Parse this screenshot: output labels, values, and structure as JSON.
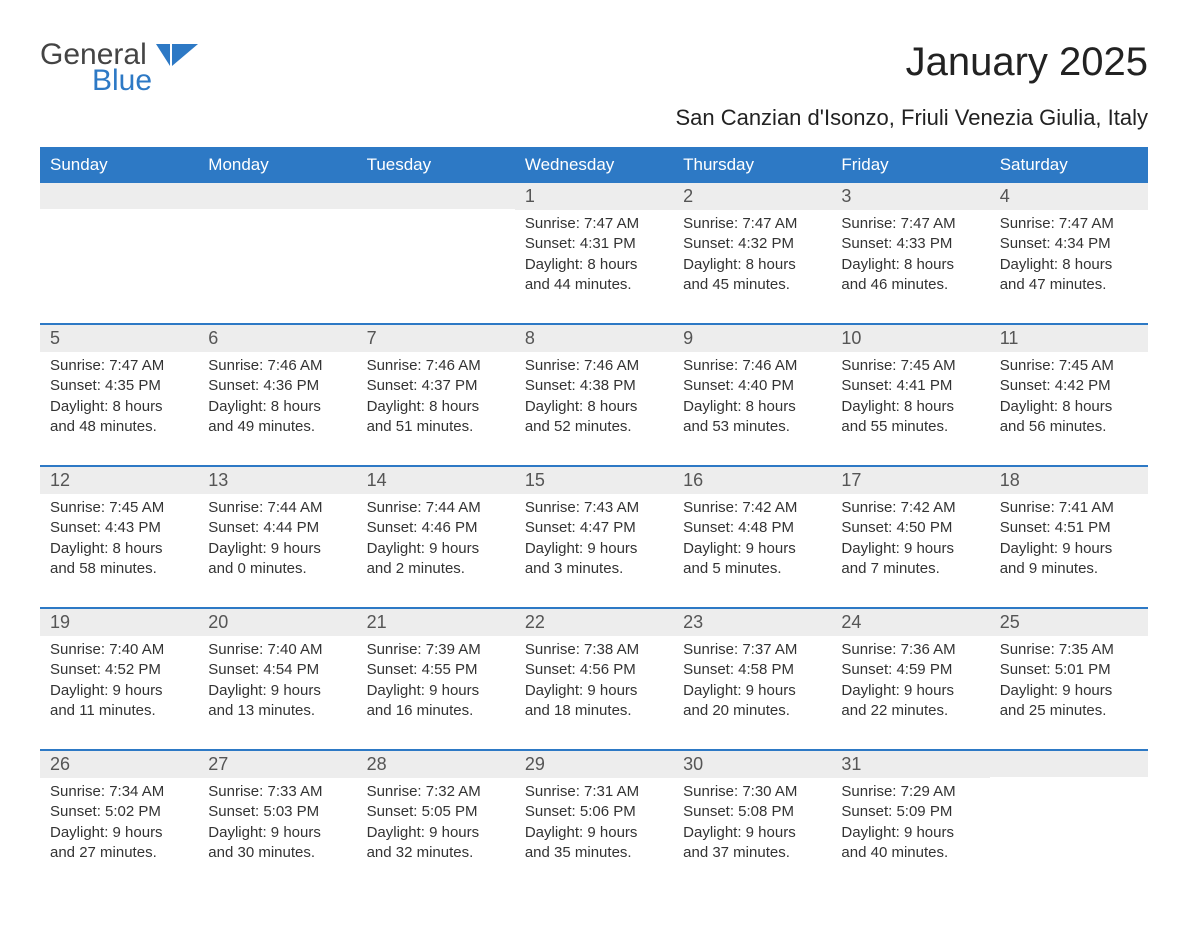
{
  "logo": {
    "text1": "General",
    "text2": "Blue",
    "accent_color": "#2d79c5"
  },
  "title": "January 2025",
  "subtitle": "San Canzian d'Isonzo, Friuli Venezia Giulia, Italy",
  "colors": {
    "header_bg": "#2d79c5",
    "header_text": "#ffffff",
    "daynum_bg": "#ededed",
    "daynum_text": "#555555",
    "body_text": "#333333",
    "rule": "#2d79c5",
    "page_bg": "#ffffff"
  },
  "day_headers": [
    "Sunday",
    "Monday",
    "Tuesday",
    "Wednesday",
    "Thursday",
    "Friday",
    "Saturday"
  ],
  "weeks": [
    [
      {
        "empty": true
      },
      {
        "empty": true
      },
      {
        "empty": true
      },
      {
        "day": "1",
        "sunrise": "Sunrise: 7:47 AM",
        "sunset": "Sunset: 4:31 PM",
        "daylight1": "Daylight: 8 hours",
        "daylight2": "and 44 minutes."
      },
      {
        "day": "2",
        "sunrise": "Sunrise: 7:47 AM",
        "sunset": "Sunset: 4:32 PM",
        "daylight1": "Daylight: 8 hours",
        "daylight2": "and 45 minutes."
      },
      {
        "day": "3",
        "sunrise": "Sunrise: 7:47 AM",
        "sunset": "Sunset: 4:33 PM",
        "daylight1": "Daylight: 8 hours",
        "daylight2": "and 46 minutes."
      },
      {
        "day": "4",
        "sunrise": "Sunrise: 7:47 AM",
        "sunset": "Sunset: 4:34 PM",
        "daylight1": "Daylight: 8 hours",
        "daylight2": "and 47 minutes."
      }
    ],
    [
      {
        "day": "5",
        "sunrise": "Sunrise: 7:47 AM",
        "sunset": "Sunset: 4:35 PM",
        "daylight1": "Daylight: 8 hours",
        "daylight2": "and 48 minutes."
      },
      {
        "day": "6",
        "sunrise": "Sunrise: 7:46 AM",
        "sunset": "Sunset: 4:36 PM",
        "daylight1": "Daylight: 8 hours",
        "daylight2": "and 49 minutes."
      },
      {
        "day": "7",
        "sunrise": "Sunrise: 7:46 AM",
        "sunset": "Sunset: 4:37 PM",
        "daylight1": "Daylight: 8 hours",
        "daylight2": "and 51 minutes."
      },
      {
        "day": "8",
        "sunrise": "Sunrise: 7:46 AM",
        "sunset": "Sunset: 4:38 PM",
        "daylight1": "Daylight: 8 hours",
        "daylight2": "and 52 minutes."
      },
      {
        "day": "9",
        "sunrise": "Sunrise: 7:46 AM",
        "sunset": "Sunset: 4:40 PM",
        "daylight1": "Daylight: 8 hours",
        "daylight2": "and 53 minutes."
      },
      {
        "day": "10",
        "sunrise": "Sunrise: 7:45 AM",
        "sunset": "Sunset: 4:41 PM",
        "daylight1": "Daylight: 8 hours",
        "daylight2": "and 55 minutes."
      },
      {
        "day": "11",
        "sunrise": "Sunrise: 7:45 AM",
        "sunset": "Sunset: 4:42 PM",
        "daylight1": "Daylight: 8 hours",
        "daylight2": "and 56 minutes."
      }
    ],
    [
      {
        "day": "12",
        "sunrise": "Sunrise: 7:45 AM",
        "sunset": "Sunset: 4:43 PM",
        "daylight1": "Daylight: 8 hours",
        "daylight2": "and 58 minutes."
      },
      {
        "day": "13",
        "sunrise": "Sunrise: 7:44 AM",
        "sunset": "Sunset: 4:44 PM",
        "daylight1": "Daylight: 9 hours",
        "daylight2": "and 0 minutes."
      },
      {
        "day": "14",
        "sunrise": "Sunrise: 7:44 AM",
        "sunset": "Sunset: 4:46 PM",
        "daylight1": "Daylight: 9 hours",
        "daylight2": "and 2 minutes."
      },
      {
        "day": "15",
        "sunrise": "Sunrise: 7:43 AM",
        "sunset": "Sunset: 4:47 PM",
        "daylight1": "Daylight: 9 hours",
        "daylight2": "and 3 minutes."
      },
      {
        "day": "16",
        "sunrise": "Sunrise: 7:42 AM",
        "sunset": "Sunset: 4:48 PM",
        "daylight1": "Daylight: 9 hours",
        "daylight2": "and 5 minutes."
      },
      {
        "day": "17",
        "sunrise": "Sunrise: 7:42 AM",
        "sunset": "Sunset: 4:50 PM",
        "daylight1": "Daylight: 9 hours",
        "daylight2": "and 7 minutes."
      },
      {
        "day": "18",
        "sunrise": "Sunrise: 7:41 AM",
        "sunset": "Sunset: 4:51 PM",
        "daylight1": "Daylight: 9 hours",
        "daylight2": "and 9 minutes."
      }
    ],
    [
      {
        "day": "19",
        "sunrise": "Sunrise: 7:40 AM",
        "sunset": "Sunset: 4:52 PM",
        "daylight1": "Daylight: 9 hours",
        "daylight2": "and 11 minutes."
      },
      {
        "day": "20",
        "sunrise": "Sunrise: 7:40 AM",
        "sunset": "Sunset: 4:54 PM",
        "daylight1": "Daylight: 9 hours",
        "daylight2": "and 13 minutes."
      },
      {
        "day": "21",
        "sunrise": "Sunrise: 7:39 AM",
        "sunset": "Sunset: 4:55 PM",
        "daylight1": "Daylight: 9 hours",
        "daylight2": "and 16 minutes."
      },
      {
        "day": "22",
        "sunrise": "Sunrise: 7:38 AM",
        "sunset": "Sunset: 4:56 PM",
        "daylight1": "Daylight: 9 hours",
        "daylight2": "and 18 minutes."
      },
      {
        "day": "23",
        "sunrise": "Sunrise: 7:37 AM",
        "sunset": "Sunset: 4:58 PM",
        "daylight1": "Daylight: 9 hours",
        "daylight2": "and 20 minutes."
      },
      {
        "day": "24",
        "sunrise": "Sunrise: 7:36 AM",
        "sunset": "Sunset: 4:59 PM",
        "daylight1": "Daylight: 9 hours",
        "daylight2": "and 22 minutes."
      },
      {
        "day": "25",
        "sunrise": "Sunrise: 7:35 AM",
        "sunset": "Sunset: 5:01 PM",
        "daylight1": "Daylight: 9 hours",
        "daylight2": "and 25 minutes."
      }
    ],
    [
      {
        "day": "26",
        "sunrise": "Sunrise: 7:34 AM",
        "sunset": "Sunset: 5:02 PM",
        "daylight1": "Daylight: 9 hours",
        "daylight2": "and 27 minutes."
      },
      {
        "day": "27",
        "sunrise": "Sunrise: 7:33 AM",
        "sunset": "Sunset: 5:03 PM",
        "daylight1": "Daylight: 9 hours",
        "daylight2": "and 30 minutes."
      },
      {
        "day": "28",
        "sunrise": "Sunrise: 7:32 AM",
        "sunset": "Sunset: 5:05 PM",
        "daylight1": "Daylight: 9 hours",
        "daylight2": "and 32 minutes."
      },
      {
        "day": "29",
        "sunrise": "Sunrise: 7:31 AM",
        "sunset": "Sunset: 5:06 PM",
        "daylight1": "Daylight: 9 hours",
        "daylight2": "and 35 minutes."
      },
      {
        "day": "30",
        "sunrise": "Sunrise: 7:30 AM",
        "sunset": "Sunset: 5:08 PM",
        "daylight1": "Daylight: 9 hours",
        "daylight2": "and 37 minutes."
      },
      {
        "day": "31",
        "sunrise": "Sunrise: 7:29 AM",
        "sunset": "Sunset: 5:09 PM",
        "daylight1": "Daylight: 9 hours",
        "daylight2": "and 40 minutes."
      },
      {
        "empty": true
      }
    ]
  ]
}
